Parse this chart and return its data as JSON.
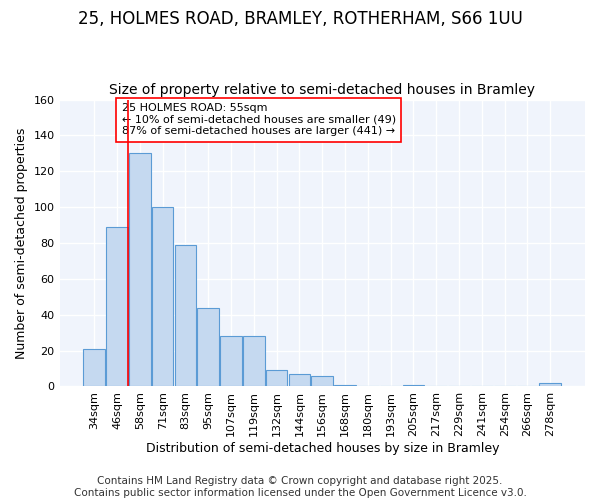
{
  "title_line1": "25, HOLMES ROAD, BRAMLEY, ROTHERHAM, S66 1UU",
  "title_line2": "Size of property relative to semi-detached houses in Bramley",
  "bar_labels": [
    "34sqm",
    "46sqm",
    "58sqm",
    "71sqm",
    "83sqm",
    "95sqm",
    "107sqm",
    "119sqm",
    "132sqm",
    "144sqm",
    "156sqm",
    "168sqm",
    "180sqm",
    "193sqm",
    "205sqm",
    "217sqm",
    "229sqm",
    "241sqm",
    "254sqm",
    "266sqm",
    "278sqm"
  ],
  "bar_values": [
    21,
    89,
    130,
    100,
    79,
    44,
    28,
    28,
    9,
    7,
    6,
    1,
    0,
    0,
    1,
    0,
    0,
    0,
    0,
    0,
    2
  ],
  "bar_color": "#c5d9f0",
  "bar_edge_color": "#5b9bd5",
  "ylabel": "Number of semi-detached properties",
  "xlabel": "Distribution of semi-detached houses by size in Bramley",
  "ylim": [
    0,
    160
  ],
  "yticks": [
    0,
    20,
    40,
    60,
    80,
    100,
    120,
    140,
    160
  ],
  "property_label": "25 HOLMES ROAD: 55sqm",
  "pct_smaller": 10,
  "n_smaller": 49,
  "pct_larger": 87,
  "n_larger": 441,
  "vline_x": 1.5,
  "footer_line1": "Contains HM Land Registry data © Crown copyright and database right 2025.",
  "footer_line2": "Contains public sector information licensed under the Open Government Licence v3.0.",
  "bg_color": "#ffffff",
  "plot_bg_color": "#f0f4fc",
  "grid_color": "#ffffff",
  "title_fontsize": 12,
  "subtitle_fontsize": 10,
  "axis_label_fontsize": 9,
  "tick_fontsize": 8,
  "footer_fontsize": 7.5,
  "ann_fontsize": 8
}
